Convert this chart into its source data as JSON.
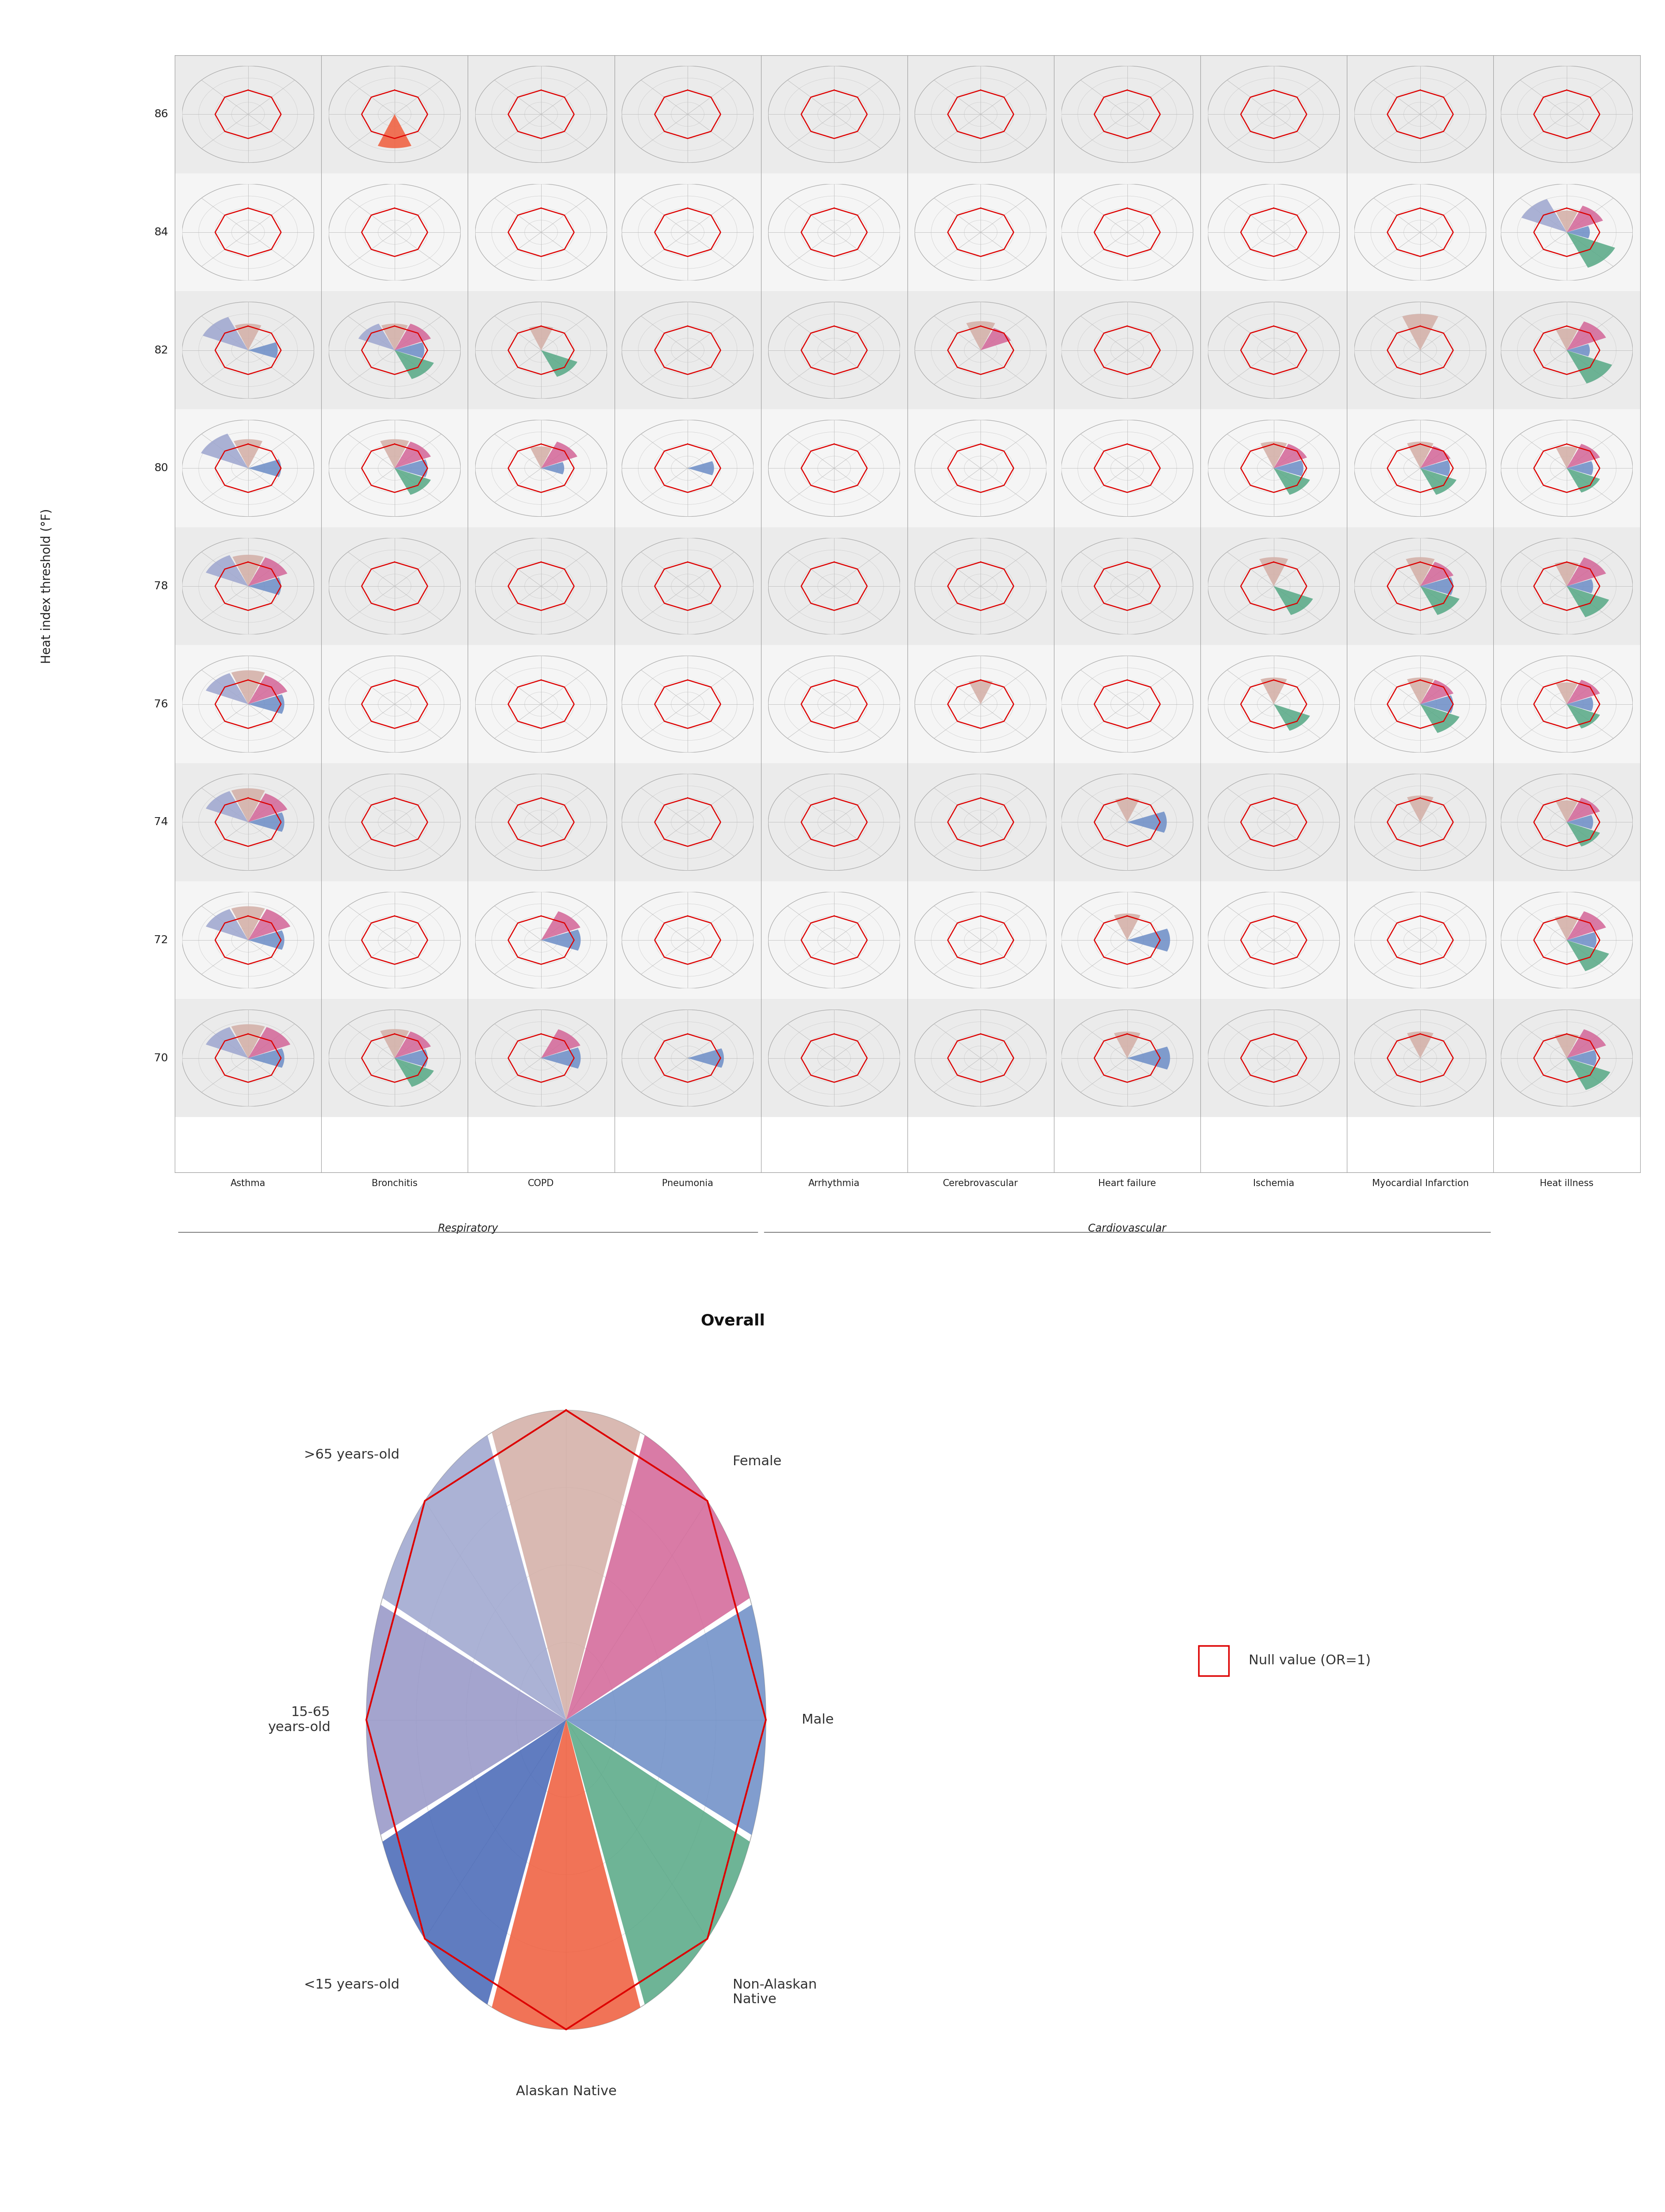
{
  "figure_bg": "#ffffff",
  "y_values": [
    86,
    84,
    82,
    80,
    78,
    76,
    74,
    72,
    70
  ],
  "columns": [
    "Asthma",
    "Bronchitis",
    "COPD",
    "Pneumonia",
    "Arrhythmia",
    "Cerebrovascular",
    "Heart failure",
    "Ischemia",
    "Myocardial Infarction",
    "Heat illness"
  ],
  "col_groups": {
    "Respiratory": {
      "cols": [
        0,
        1,
        2,
        3
      ],
      "label": "Respiratory"
    },
    "Cardiovascular": {
      "cols": [
        4,
        5,
        6,
        7,
        8
      ],
      "label": "Cardiovascular"
    }
  },
  "n_spokes": 8,
  "demo_colors": [
    "#d4b0a8",
    "#d4699a",
    "#7090c8",
    "#5aaa88",
    "#f06040",
    "#4a6ab8",
    "#9898c8",
    "#a0a8d0"
  ],
  "ref_color": "#dd0000",
  "ylabel": "Heat index threshold (°F)",
  "chart_data": {
    "86": {
      "Bronchitis": [
        0.0,
        0.0,
        0.0,
        0.0,
        0.7,
        0.0,
        0.0,
        0.0
      ]
    },
    "84": {
      "Heat illness": [
        0.45,
        0.6,
        0.35,
        0.8,
        0.0,
        0.0,
        0.0,
        0.75
      ]
    },
    "82": {
      "Asthma": [
        0.55,
        0.0,
        0.45,
        0.0,
        0.0,
        0.0,
        0.0,
        0.75
      ],
      "Bronchitis": [
        0.55,
        0.6,
        0.45,
        0.65,
        0.0,
        0.0,
        0.0,
        0.6
      ],
      "COPD": [
        0.5,
        0.0,
        0.0,
        0.6,
        0.0,
        0.0,
        0.0,
        0.0
      ],
      "Cerebrovascular": [
        0.6,
        0.5,
        0.0,
        0.0,
        0.0,
        0.0,
        0.0,
        0.0
      ],
      "Ischemia": [
        0.0,
        0.0,
        0.0,
        0.0,
        0.0,
        0.0,
        0.0,
        0.0
      ],
      "Myocardial Infarction": [
        0.75,
        0.0,
        0.0,
        0.0,
        0.0,
        0.0,
        0.0,
        0.0
      ],
      "Heat illness": [
        0.45,
        0.65,
        0.35,
        0.75,
        0.0,
        0.0,
        0.0,
        0.0
      ]
    },
    "80": {
      "Asthma": [
        0.6,
        0.0,
        0.5,
        0.0,
        0.0,
        0.0,
        0.0,
        0.78
      ],
      "Bronchitis": [
        0.6,
        0.6,
        0.5,
        0.6,
        0.0,
        0.0,
        0.0,
        0.0
      ],
      "COPD": [
        0.45,
        0.6,
        0.35,
        0.0,
        0.0,
        0.0,
        0.0,
        0.0
      ],
      "Pneumonia": [
        0.0,
        0.0,
        0.4,
        0.0,
        0.0,
        0.0,
        0.0,
        0.0
      ],
      "Ischemia": [
        0.55,
        0.55,
        0.45,
        0.6,
        0.0,
        0.0,
        0.0,
        0.0
      ],
      "Myocardial Infarction": [
        0.55,
        0.5,
        0.45,
        0.6,
        0.0,
        0.0,
        0.0,
        0.0
      ],
      "Heat illness": [
        0.45,
        0.55,
        0.4,
        0.55,
        0.0,
        0.0,
        0.0,
        0.0
      ]
    },
    "78": {
      "Asthma": [
        0.65,
        0.65,
        0.5,
        0.0,
        0.0,
        0.0,
        0.0,
        0.7
      ],
      "Ischemia": [
        0.6,
        0.0,
        0.0,
        0.65,
        0.0,
        0.0,
        0.0,
        0.0
      ],
      "Myocardial Infarction": [
        0.6,
        0.55,
        0.5,
        0.65,
        0.0,
        0.0,
        0.0,
        0.0
      ],
      "Heat illness": [
        0.5,
        0.65,
        0.4,
        0.7,
        0.0,
        0.0,
        0.0,
        0.0
      ]
    },
    "76": {
      "Asthma": [
        0.7,
        0.65,
        0.55,
        0.0,
        0.0,
        0.0,
        0.0,
        0.7
      ],
      "Cerebrovascular": [
        0.5,
        0.0,
        0.0,
        0.0,
        0.0,
        0.0,
        0.0,
        0.0
      ],
      "Ischemia": [
        0.55,
        0.0,
        0.0,
        0.6,
        0.0,
        0.0,
        0.0,
        0.0
      ],
      "Myocardial Infarction": [
        0.55,
        0.55,
        0.5,
        0.65,
        0.0,
        0.0,
        0.0,
        0.0
      ],
      "Heat illness": [
        0.45,
        0.55,
        0.4,
        0.55,
        0.0,
        0.0,
        0.0,
        0.0
      ]
    },
    "74": {
      "Asthma": [
        0.7,
        0.65,
        0.55,
        0.0,
        0.0,
        0.0,
        0.0,
        0.7
      ],
      "Heart failure": [
        0.5,
        0.0,
        0.6,
        0.0,
        0.0,
        0.0,
        0.0,
        0.0
      ],
      "Myocardial Infarction": [
        0.55,
        0.0,
        0.0,
        0.0,
        0.0,
        0.0,
        0.0,
        0.0
      ],
      "Heat illness": [
        0.45,
        0.55,
        0.4,
        0.55,
        0.0,
        0.0,
        0.0,
        0.0
      ]
    },
    "72": {
      "Asthma": [
        0.7,
        0.7,
        0.55,
        0.0,
        0.0,
        0.0,
        0.0,
        0.7
      ],
      "COPD": [
        0.0,
        0.65,
        0.6,
        0.0,
        0.0,
        0.0,
        0.0,
        0.0
      ],
      "Heart failure": [
        0.55,
        0.0,
        0.65,
        0.0,
        0.0,
        0.0,
        0.0,
        0.0
      ],
      "Heat illness": [
        0.5,
        0.65,
        0.45,
        0.7,
        0.0,
        0.0,
        0.0,
        0.0
      ]
    },
    "70": {
      "Asthma": [
        0.7,
        0.7,
        0.55,
        0.0,
        0.0,
        0.0,
        0.0,
        0.7
      ],
      "Bronchitis": [
        0.6,
        0.6,
        0.5,
        0.65,
        0.0,
        0.0,
        0.0,
        0.0
      ],
      "COPD": [
        0.0,
        0.65,
        0.6,
        0.0,
        0.0,
        0.0,
        0.0,
        0.0
      ],
      "Pneumonia": [
        0.0,
        0.0,
        0.55,
        0.0,
        0.0,
        0.0,
        0.0,
        0.0
      ],
      "Heart failure": [
        0.55,
        0.0,
        0.65,
        0.0,
        0.0,
        0.0,
        0.0,
        0.0
      ],
      "Ischemia": [
        0.0,
        0.0,
        0.0,
        0.0,
        0.0,
        0.0,
        0.0,
        0.0
      ],
      "Myocardial Infarction": [
        0.55,
        0.0,
        0.0,
        0.0,
        0.0,
        0.0,
        0.0,
        0.0
      ],
      "Heat illness": [
        0.5,
        0.65,
        0.45,
        0.72,
        0.0,
        0.0,
        0.0,
        0.0
      ]
    }
  },
  "legend_colors": [
    "#d4b0a8",
    "#d4699a",
    "#7090c8",
    "#5aaa88",
    "#f06040",
    "#4a6ab8",
    "#9898c8",
    "#a0a8d0"
  ],
  "legend_spoke_labels": [
    ">65 years-old",
    "Female",
    "Male",
    "Non-Alaskan\nNative",
    "Alaskan Native",
    "<15 years-old",
    "15-65\nyears-old",
    ">65 years-old"
  ],
  "legend_label_positions": [
    [
      0,
      "top",
      ">65 years-old"
    ],
    [
      1,
      "right",
      "Female"
    ],
    [
      2,
      "right",
      "Male"
    ],
    [
      3,
      "bottom",
      "Non-Alaskan\nNative"
    ],
    [
      4,
      "bottom",
      "Alaskan Native"
    ],
    [
      5,
      "left",
      "<15 years-old"
    ],
    [
      6,
      "left",
      "15-65\nyears-old"
    ],
    [
      7,
      "top",
      ">65 years-old"
    ]
  ]
}
